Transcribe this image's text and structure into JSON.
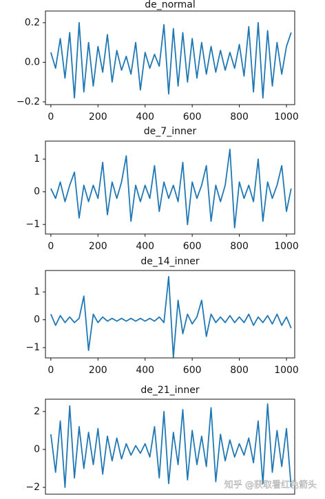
{
  "chart_data": [
    {
      "type": "line",
      "title": "de_normal",
      "x": [
        0,
        20,
        40,
        60,
        80,
        100,
        120,
        140,
        160,
        180,
        200,
        220,
        240,
        260,
        280,
        300,
        320,
        340,
        360,
        380,
        400,
        420,
        440,
        460,
        480,
        500,
        520,
        540,
        560,
        580,
        600,
        620,
        640,
        660,
        680,
        700,
        720,
        740,
        760,
        780,
        800,
        820,
        840,
        860,
        880,
        900,
        920,
        940,
        960,
        980,
        1000,
        1020
      ],
      "series": [
        {
          "color": "#1f77b4",
          "values": [
            0.05,
            -0.03,
            0.12,
            -0.08,
            0.15,
            -0.18,
            0.2,
            -0.15,
            0.1,
            -0.12,
            0.08,
            -0.05,
            0.14,
            -0.1,
            0.06,
            -0.04,
            0.03,
            -0.06,
            0.1,
            -0.14,
            0.05,
            -0.03,
            0.04,
            -0.02,
            0.19,
            -0.16,
            0.17,
            -0.12,
            0.15,
            -0.1,
            0.12,
            -0.08,
            0.1,
            -0.06,
            0.08,
            -0.05,
            0.06,
            -0.04,
            0.05,
            -0.03,
            0.09,
            -0.07,
            0.18,
            -0.15,
            0.2,
            -0.18,
            0.16,
            -0.12,
            0.1,
            -0.06,
            0.08,
            0.15
          ]
        }
      ],
      "xlim": [
        -23,
        1035
      ],
      "xticks": [
        0,
        200,
        400,
        600,
        800,
        1000
      ],
      "ylim": [
        -0.214,
        0.259
      ],
      "yticks": [
        {
          "value": -0.2,
          "label": "−0.2"
        },
        {
          "value": 0,
          "label": "0.0"
        },
        {
          "value": 0.2,
          "label": "0.2"
        }
      ]
    },
    {
      "type": "line",
      "title": "de_7_inner",
      "x": [
        0,
        20,
        40,
        60,
        80,
        100,
        120,
        140,
        160,
        180,
        200,
        220,
        240,
        260,
        280,
        300,
        320,
        340,
        360,
        380,
        400,
        420,
        440,
        460,
        480,
        500,
        520,
        540,
        560,
        580,
        600,
        620,
        640,
        660,
        680,
        700,
        720,
        740,
        760,
        780,
        800,
        820,
        840,
        860,
        880,
        900,
        920,
        940,
        960,
        980,
        1000,
        1020
      ],
      "series": [
        {
          "color": "#1f77b4",
          "values": [
            0.1,
            -0.2,
            0.3,
            -0.3,
            0.2,
            0.6,
            -0.8,
            0.2,
            -0.3,
            0.2,
            -0.2,
            0.9,
            -0.7,
            0.3,
            -0.2,
            0.3,
            1.1,
            -0.9,
            0.2,
            -0.3,
            0.2,
            -0.2,
            0.8,
            -0.6,
            0.3,
            -0.2,
            0.2,
            -0.3,
            0.9,
            -1.0,
            0.3,
            -0.2,
            0.2,
            0.8,
            -0.9,
            0.2,
            -0.3,
            0.2,
            1.3,
            -1.1,
            0.3,
            -0.2,
            0.2,
            -0.3,
            1.0,
            -0.9,
            0.3,
            -0.2,
            0.2,
            0.8,
            -0.6,
            0.1
          ]
        }
      ],
      "xlim": [
        -23,
        1035
      ],
      "xticks": [
        0,
        200,
        400,
        600,
        800,
        1000
      ],
      "ylim": [
        -1.29,
        1.55
      ],
      "yticks": [
        {
          "value": -1,
          "label": "−1"
        },
        0,
        1
      ]
    },
    {
      "type": "line",
      "title": "de_14_inner",
      "x": [
        0,
        20,
        40,
        60,
        80,
        100,
        120,
        140,
        160,
        180,
        200,
        220,
        240,
        260,
        280,
        300,
        320,
        340,
        360,
        380,
        400,
        420,
        440,
        460,
        480,
        500,
        520,
        540,
        560,
        580,
        600,
        620,
        640,
        660,
        680,
        700,
        720,
        740,
        760,
        780,
        800,
        820,
        840,
        860,
        880,
        900,
        920,
        940,
        960,
        980,
        1000,
        1020
      ],
      "series": [
        {
          "color": "#1f77b4",
          "values": [
            0.2,
            -0.2,
            0.15,
            -0.1,
            0.1,
            -0.1,
            0.05,
            0.85,
            -1.1,
            0.2,
            -0.1,
            0.1,
            -0.05,
            0.05,
            -0.05,
            0.05,
            -0.05,
            0.05,
            -0.05,
            0.05,
            -0.05,
            0.05,
            -0.05,
            0.1,
            -0.1,
            1.55,
            -1.35,
            0.7,
            -0.5,
            0.2,
            -0.15,
            0.1,
            0.7,
            -0.6,
            0.2,
            -0.1,
            0.1,
            -0.1,
            0.15,
            -0.1,
            0.1,
            -0.1,
            0.2,
            -0.2,
            0.1,
            -0.1,
            0.15,
            -0.15,
            0.2,
            -0.2,
            0.1,
            -0.3
          ]
        }
      ],
      "xlim": [
        -23,
        1035
      ],
      "xticks": [
        0,
        200,
        400,
        600,
        800,
        1000
      ],
      "ylim": [
        -1.37,
        1.77
      ],
      "yticks": [
        {
          "value": -1,
          "label": "−1"
        },
        0,
        1
      ]
    },
    {
      "type": "line",
      "title": "de_21_inner",
      "x": [
        0,
        20,
        40,
        60,
        80,
        100,
        120,
        140,
        160,
        180,
        200,
        220,
        240,
        260,
        280,
        300,
        320,
        340,
        360,
        380,
        400,
        420,
        440,
        460,
        480,
        500,
        520,
        540,
        560,
        580,
        600,
        620,
        640,
        660,
        680,
        700,
        720,
        740,
        760,
        780,
        800,
        820,
        840,
        860,
        880,
        900,
        920,
        940,
        960,
        980,
        1000,
        1020
      ],
      "series": [
        {
          "color": "#1f77b4",
          "values": [
            0.8,
            -1.2,
            1.5,
            -2.0,
            2.3,
            -1.5,
            1.2,
            -1.0,
            0.9,
            -0.8,
            1.1,
            -1.3,
            0.7,
            -0.6,
            0.6,
            -0.5,
            0.3,
            -0.3,
            0.2,
            -0.2,
            0.3,
            -0.4,
            1.2,
            -1.5,
            2.0,
            -1.8,
            0.9,
            -0.8,
            2.1,
            -1.6,
            1.0,
            -0.8,
            0.7,
            -0.9,
            2.2,
            -1.7,
            0.8,
            -0.6,
            0.5,
            -0.4,
            0.3,
            -0.3,
            0.6,
            -0.7,
            1.5,
            -1.8,
            2.4,
            -1.2,
            1.0,
            -0.9,
            1.1,
            -2.0
          ]
        }
      ],
      "xlim": [
        -23,
        1035
      ],
      "ylim": [
        -2.36,
        2.65
      ],
      "yticks": [
        {
          "value": -2,
          "label": "−2"
        },
        0,
        2
      ]
    }
  ],
  "watermark": "知乎 @获取看红色箭头"
}
